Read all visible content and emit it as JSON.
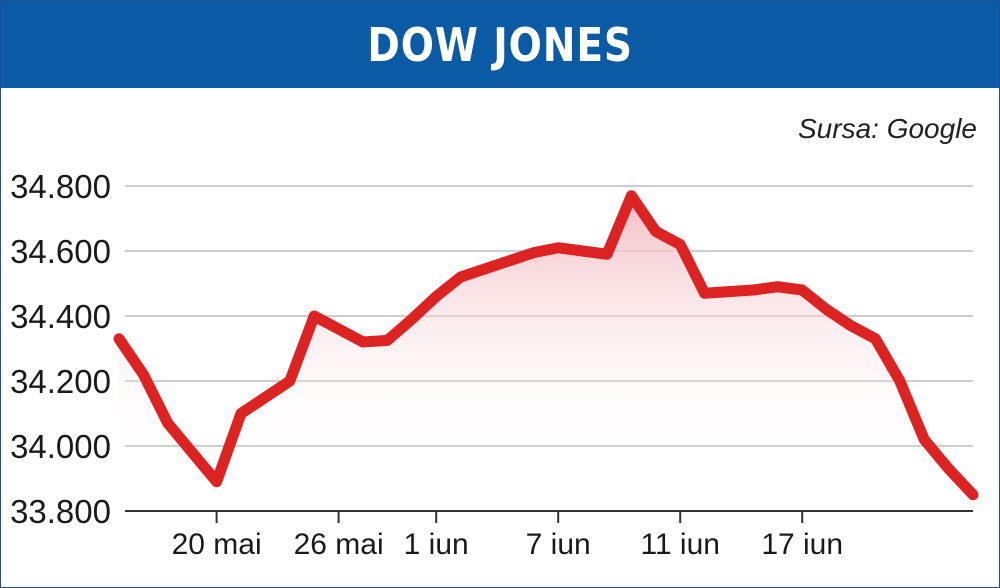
{
  "header": {
    "title": "DOW JONES"
  },
  "source": "Sursa: Google",
  "colors": {
    "header_bg": "#0a5aa6",
    "line": "#dd2222",
    "fill": "#f2b9bf",
    "grid": "#b0b0b0"
  },
  "chart_data": {
    "type": "area",
    "title": "DOW JONES",
    "xlabel": "",
    "ylabel": "",
    "ylim": [
      33800,
      34800
    ],
    "y_ticks": [
      34800,
      34600,
      34400,
      34200,
      34000,
      33800
    ],
    "y_tick_labels": [
      "34.800",
      "34.600",
      "34.400",
      "34.200",
      "34.000",
      "33.800"
    ],
    "x_tick_labels": [
      "20 mai",
      "26 mai",
      "1 iun",
      "7 iun",
      "11 iun",
      "17 iun"
    ],
    "x_tick_index": [
      4,
      9,
      13,
      18,
      23,
      28
    ],
    "grid": true,
    "series": [
      {
        "values": [
          34330,
          34220,
          34070,
          33980,
          33890,
          34100,
          34150,
          34200,
          34400,
          34360,
          34320,
          34325,
          34390,
          34460,
          34520,
          34545,
          34570,
          34595,
          34610,
          34600,
          34590,
          34770,
          34660,
          34620,
          34470,
          34475,
          34480,
          34490,
          34480,
          34420,
          34370,
          34330,
          34200,
          34020,
          33930,
          33850
        ]
      }
    ]
  }
}
